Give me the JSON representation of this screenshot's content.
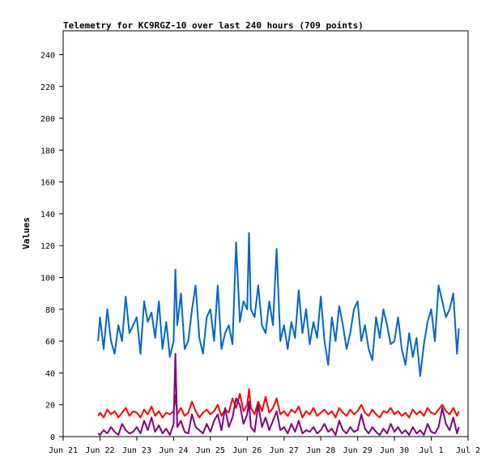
{
  "chart_data": {
    "type": "line",
    "title": "Telemetry for KC9RGZ-10 over last 240 hours (709 points)",
    "ylabel": "Values",
    "xlabel": "",
    "ylim": [
      0,
      255
    ],
    "yticks": [
      0,
      20,
      40,
      60,
      80,
      100,
      120,
      140,
      160,
      180,
      200,
      220,
      240
    ],
    "xlim": [
      0,
      11
    ],
    "xticks": [
      {
        "x": 0,
        "label": "Jun 21"
      },
      {
        "x": 1,
        "label": "Jun 22"
      },
      {
        "x": 2,
        "label": "Jun 23"
      },
      {
        "x": 3,
        "label": "Jun 24"
      },
      {
        "x": 4,
        "label": "Jun 25"
      },
      {
        "x": 5,
        "label": "Jun 26"
      },
      {
        "x": 6,
        "label": "Jun 27"
      },
      {
        "x": 7,
        "label": "Jun 28"
      },
      {
        "x": 8,
        "label": "Jun 29"
      },
      {
        "x": 9,
        "label": "Jun 30"
      },
      {
        "x": 10,
        "label": "Jul 1"
      },
      {
        "x": 11,
        "label": "Jul 2"
      }
    ],
    "grid": false,
    "legend": "none",
    "series": [
      {
        "color": "#0066cc",
        "x": [
          0.95,
          1.0,
          1.1,
          1.2,
          1.3,
          1.4,
          1.5,
          1.6,
          1.7,
          1.8,
          1.9,
          2.0,
          2.1,
          2.2,
          2.3,
          2.4,
          2.5,
          2.6,
          2.7,
          2.8,
          2.9,
          3.0,
          3.05,
          3.1,
          3.2,
          3.3,
          3.4,
          3.5,
          3.6,
          3.7,
          3.8,
          3.9,
          4.0,
          4.1,
          4.2,
          4.3,
          4.4,
          4.5,
          4.6,
          4.7,
          4.8,
          4.9,
          5.0,
          5.05,
          5.1,
          5.2,
          5.3,
          5.4,
          5.5,
          5.6,
          5.7,
          5.8,
          5.9,
          6.0,
          6.1,
          6.2,
          6.3,
          6.4,
          6.5,
          6.6,
          6.7,
          6.8,
          6.9,
          7.0,
          7.1,
          7.2,
          7.3,
          7.4,
          7.5,
          7.6,
          7.7,
          7.8,
          7.9,
          8.0,
          8.1,
          8.2,
          8.3,
          8.4,
          8.5,
          8.6,
          8.7,
          8.8,
          8.9,
          9.0,
          9.1,
          9.2,
          9.3,
          9.4,
          9.5,
          9.6,
          9.7,
          9.8,
          9.9,
          10.0,
          10.1,
          10.2,
          10.3,
          10.4,
          10.5,
          10.6,
          10.7,
          10.75
        ],
        "values": [
          60,
          75,
          55,
          80,
          60,
          52,
          70,
          60,
          88,
          65,
          70,
          75,
          52,
          85,
          72,
          78,
          62,
          85,
          55,
          72,
          50,
          60,
          105,
          70,
          90,
          55,
          60,
          80,
          95,
          62,
          52,
          75,
          80,
          60,
          95,
          55,
          65,
          70,
          58,
          122,
          72,
          85,
          80,
          128,
          80,
          75,
          95,
          70,
          65,
          85,
          70,
          118,
          60,
          70,
          55,
          72,
          62,
          92,
          65,
          80,
          58,
          72,
          62,
          88,
          60,
          45,
          75,
          60,
          82,
          70,
          55,
          65,
          80,
          85,
          60,
          70,
          55,
          48,
          75,
          62,
          80,
          70,
          58,
          60,
          75,
          55,
          45,
          65,
          50,
          62,
          38,
          58,
          72,
          80,
          60,
          95,
          85,
          75,
          80,
          90,
          52,
          68
        ]
      },
      {
        "color": "#ff0000",
        "x": [
          0.95,
          1.0,
          1.1,
          1.2,
          1.3,
          1.4,
          1.5,
          1.6,
          1.7,
          1.8,
          1.9,
          2.0,
          2.1,
          2.2,
          2.3,
          2.4,
          2.5,
          2.6,
          2.7,
          2.8,
          2.9,
          3.0,
          3.05,
          3.1,
          3.2,
          3.3,
          3.4,
          3.5,
          3.6,
          3.7,
          3.8,
          3.9,
          4.0,
          4.1,
          4.2,
          4.3,
          4.4,
          4.5,
          4.6,
          4.7,
          4.8,
          4.9,
          5.0,
          5.05,
          5.1,
          5.2,
          5.3,
          5.4,
          5.5,
          5.6,
          5.7,
          5.8,
          5.9,
          6.0,
          6.1,
          6.2,
          6.3,
          6.4,
          6.5,
          6.6,
          6.7,
          6.8,
          6.9,
          7.0,
          7.1,
          7.2,
          7.3,
          7.4,
          7.5,
          7.6,
          7.7,
          7.8,
          7.9,
          8.0,
          8.1,
          8.2,
          8.3,
          8.4,
          8.5,
          8.6,
          8.7,
          8.8,
          8.9,
          9.0,
          9.1,
          9.2,
          9.3,
          9.4,
          9.5,
          9.6,
          9.7,
          9.8,
          9.9,
          10.0,
          10.1,
          10.2,
          10.3,
          10.4,
          10.5,
          10.6,
          10.7,
          10.75
        ],
        "values": [
          13,
          15,
          12,
          17,
          14,
          16,
          12,
          15,
          18,
          13,
          16,
          15,
          12,
          17,
          14,
          19,
          13,
          16,
          12,
          15,
          14,
          16,
          26,
          14,
          18,
          13,
          15,
          22,
          16,
          12,
          15,
          17,
          14,
          16,
          20,
          13,
          17,
          15,
          24,
          18,
          27,
          16,
          20,
          30,
          18,
          14,
          22,
          16,
          25,
          15,
          18,
          24,
          14,
          16,
          13,
          17,
          15,
          19,
          12,
          16,
          14,
          18,
          13,
          15,
          17,
          14,
          16,
          12,
          18,
          15,
          13,
          17,
          14,
          16,
          20,
          15,
          13,
          17,
          14,
          12,
          16,
          15,
          18,
          14,
          16,
          13,
          15,
          12,
          17,
          14,
          16,
          13,
          18,
          15,
          14,
          17,
          20,
          16,
          14,
          18,
          13,
          16
        ]
      },
      {
        "color": "#800080",
        "x": [
          0.95,
          1.0,
          1.1,
          1.2,
          1.3,
          1.4,
          1.5,
          1.6,
          1.7,
          1.8,
          1.9,
          2.0,
          2.1,
          2.2,
          2.3,
          2.4,
          2.5,
          2.6,
          2.7,
          2.8,
          2.9,
          3.0,
          3.05,
          3.1,
          3.2,
          3.3,
          3.4,
          3.5,
          3.6,
          3.7,
          3.8,
          3.9,
          4.0,
          4.1,
          4.2,
          4.3,
          4.4,
          4.5,
          4.6,
          4.7,
          4.8,
          4.9,
          5.0,
          5.05,
          5.1,
          5.2,
          5.3,
          5.4,
          5.5,
          5.6,
          5.7,
          5.8,
          5.9,
          6.0,
          6.1,
          6.2,
          6.3,
          6.4,
          6.5,
          6.6,
          6.7,
          6.8,
          6.9,
          7.0,
          7.1,
          7.2,
          7.3,
          7.4,
          7.5,
          7.6,
          7.7,
          7.8,
          7.9,
          8.0,
          8.1,
          8.2,
          8.3,
          8.4,
          8.5,
          8.6,
          8.7,
          8.8,
          8.9,
          9.0,
          9.1,
          9.2,
          9.3,
          9.4,
          9.5,
          9.6,
          9.7,
          9.8,
          9.9,
          10.0,
          10.1,
          10.2,
          10.3,
          10.4,
          10.5,
          10.6,
          10.7,
          10.75
        ],
        "values": [
          2,
          1,
          4,
          2,
          6,
          3,
          1,
          8,
          4,
          2,
          3,
          6,
          2,
          10,
          4,
          12,
          3,
          7,
          2,
          5,
          1,
          8,
          52,
          6,
          10,
          3,
          2,
          14,
          6,
          4,
          2,
          8,
          3,
          10,
          14,
          4,
          18,
          6,
          12,
          24,
          20,
          8,
          14,
          22,
          6,
          3,
          20,
          6,
          12,
          4,
          10,
          16,
          4,
          6,
          2,
          8,
          3,
          10,
          2,
          4,
          3,
          6,
          2,
          4,
          8,
          3,
          5,
          1,
          10,
          4,
          2,
          6,
          3,
          4,
          14,
          5,
          2,
          6,
          3,
          1,
          5,
          2,
          8,
          3,
          6,
          2,
          4,
          1,
          6,
          2,
          4,
          1,
          8,
          3,
          2,
          6,
          18,
          8,
          4,
          12,
          2,
          6
        ]
      }
    ]
  }
}
